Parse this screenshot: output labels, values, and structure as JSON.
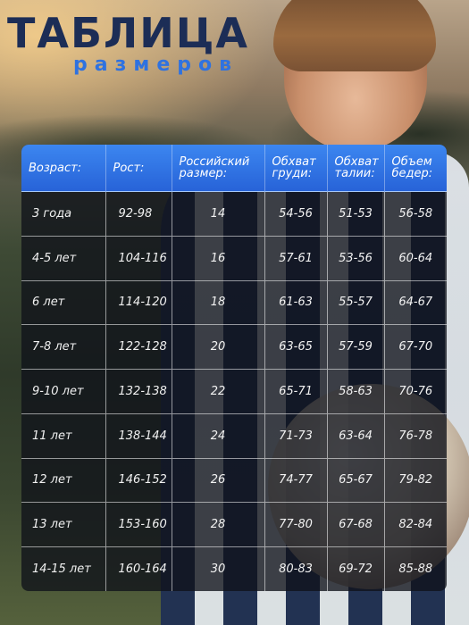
{
  "title": "ТАБЛИЦА",
  "subtitle": "размеров",
  "table": {
    "headers": [
      "Возраст:",
      "Рост:",
      "Российский размер:",
      "Обхват груди:",
      "Обхват талии:",
      "Объем бедер:"
    ],
    "rows": [
      [
        "3 года",
        "92-98",
        "14",
        "54-56",
        "51-53",
        "56-58"
      ],
      [
        "4-5 лет",
        "104-116",
        "16",
        "57-61",
        "53-56",
        "60-64"
      ],
      [
        "6 лет",
        "114-120",
        "18",
        "61-63",
        "55-57",
        "64-67"
      ],
      [
        "7-8 лет",
        "122-128",
        "20",
        "63-65",
        "57-59",
        "67-70"
      ],
      [
        "9-10 лет",
        "132-138",
        "22",
        "65-71",
        "58-63",
        "70-76"
      ],
      [
        "11 лет",
        "138-144",
        "24",
        "71-73",
        "63-64",
        "76-78"
      ],
      [
        "12 лет",
        "146-152",
        "26",
        "74-77",
        "65-67",
        "79-82"
      ],
      [
        "13 лет",
        "153-160",
        "28",
        "77-80",
        "67-68",
        "82-84"
      ],
      [
        "14-15 лет",
        "160-164",
        "30",
        "80-83",
        "69-72",
        "85-88"
      ]
    ]
  },
  "colors": {
    "title": "#1c2d56",
    "subtitle": "#2f72e0",
    "header_bg": "#2f72e0",
    "table_bg": "#0f1219"
  }
}
